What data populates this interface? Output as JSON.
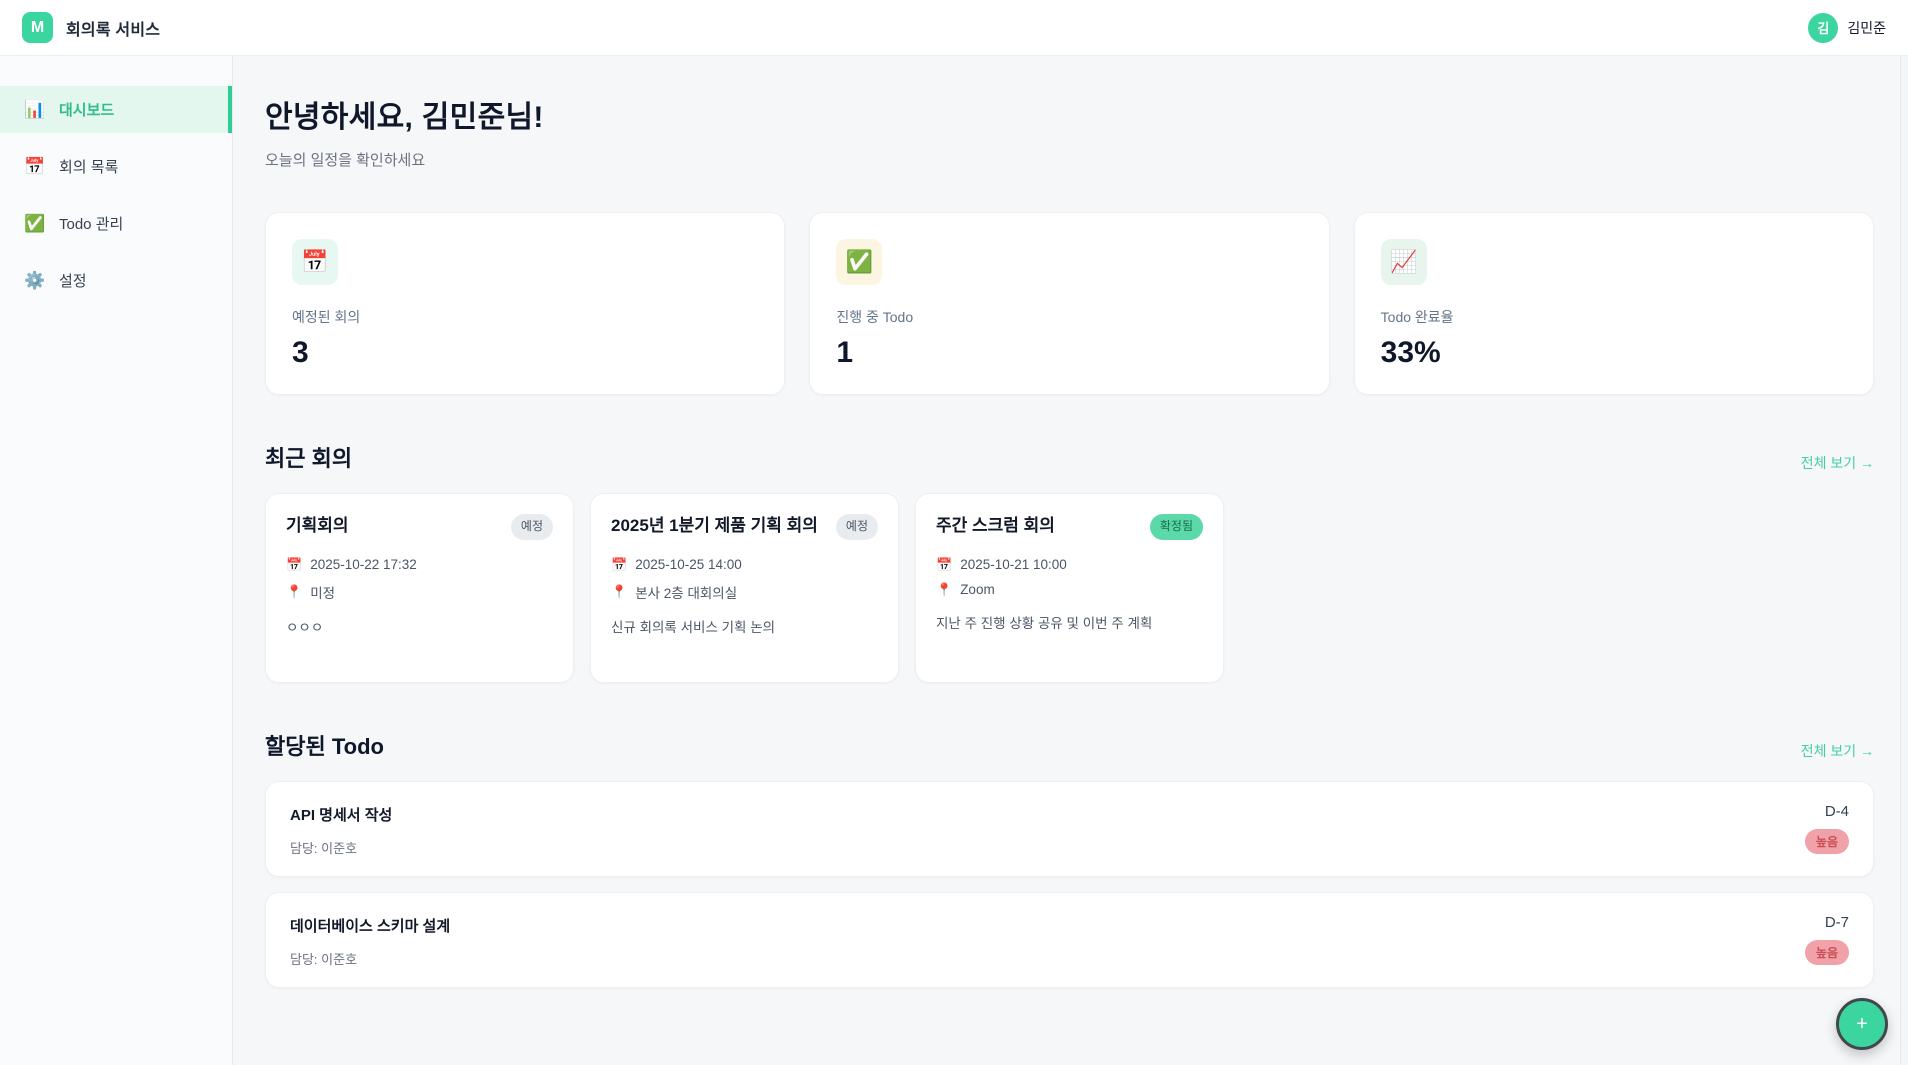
{
  "header": {
    "logo_letter": "M",
    "app_title": "회의록 서비스",
    "user_initial": "김",
    "user_name": "김민준"
  },
  "sidebar": {
    "items": [
      {
        "icon": "📊",
        "label": "대시보드",
        "active": true
      },
      {
        "icon": "📅",
        "label": "회의 목록",
        "active": false
      },
      {
        "icon": "✅",
        "label": "Todo 관리",
        "active": false
      },
      {
        "icon": "⚙️",
        "label": "설정",
        "active": false
      }
    ]
  },
  "main": {
    "greeting": "안녕하세요, 김민준님!",
    "subtitle": "오늘의 일정을 확인하세요",
    "stats": [
      {
        "icon": "📅",
        "icon_bg": "#e6f8f1",
        "label": "예정된 회의",
        "value": "3"
      },
      {
        "icon": "✅",
        "icon_bg": "#fcf5e1",
        "label": "진행 중 Todo",
        "value": "1"
      },
      {
        "icon": "📈",
        "icon_bg": "#e7f5ec",
        "label": "Todo 완료율",
        "value": "33%"
      }
    ],
    "meetings_section": {
      "title": "최근 회의",
      "view_all": "전체 보기 →",
      "date_icon": "📅",
      "location_icon": "📍",
      "cards": [
        {
          "title": "기획회의",
          "badge": "예정",
          "badge_type": "gray",
          "date": "2025-10-22 17:32",
          "location": "미정",
          "description": "ㅇㅇㅇ"
        },
        {
          "title": "2025년 1분기 제품 기획 회의",
          "badge": "예정",
          "badge_type": "gray",
          "date": "2025-10-25 14:00",
          "location": "본사 2층 대회의실",
          "description": "신규 회의록 서비스 기획 논의"
        },
        {
          "title": "주간 스크럼 회의",
          "badge": "확정됨",
          "badge_type": "green",
          "date": "2025-10-21 10:00",
          "location": "Zoom",
          "description": "지난 주 진행 상황 공유 및 이번 주 계획"
        }
      ]
    },
    "todos_section": {
      "title": "할당된 Todo",
      "view_all": "전체 보기 →",
      "items": [
        {
          "title": "API 명세서 작성",
          "assignee": "담당: 이준호",
          "dday": "D-4",
          "priority": "높음"
        },
        {
          "title": "데이터베이스 스키마 설계",
          "assignee": "담당: 이준호",
          "dday": "D-7",
          "priority": "높음"
        }
      ]
    }
  },
  "fab": {
    "icon": "+"
  },
  "colors": {
    "primary_green": "#3bd5a0",
    "active_nav_bg": "#e4f7ee",
    "active_nav_bar": "#2fcd96",
    "link_green": "#45cf9e",
    "badge_gray_bg": "#e9ecef",
    "badge_green_bg": "#5cd9a8",
    "badge_green_text": "#156d4b",
    "priority_badge_bg": "#f1a1a8",
    "priority_badge_text": "#c94d52",
    "page_bg": "#f6f7f9",
    "card_bg": "#ffffff"
  }
}
